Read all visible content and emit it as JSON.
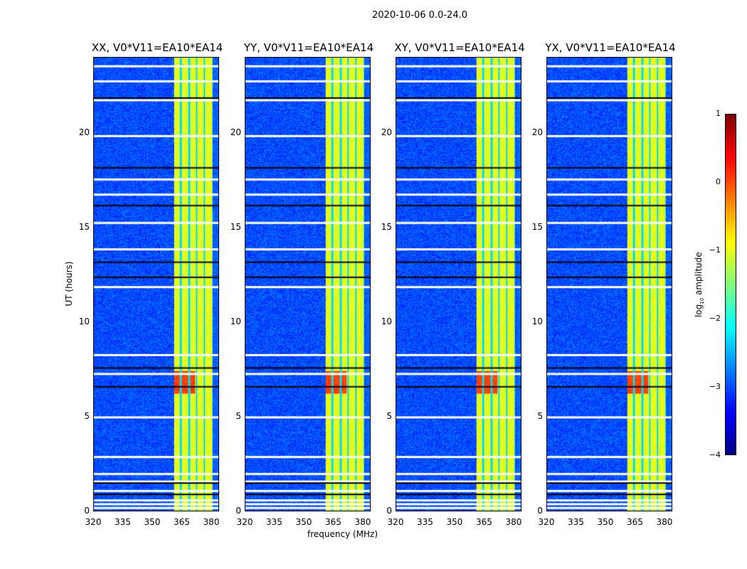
{
  "chart_data": {
    "type": "heatmap",
    "title": "2020-10-06 0.0-24.0",
    "xlabel": "frequency (MHz)",
    "ylabel": "UT (hours)",
    "xlim": [
      320,
      384
    ],
    "ylim": [
      0,
      24
    ],
    "xticks": [
      "320",
      "335",
      "350",
      "365",
      "380"
    ],
    "yticks": [
      "0",
      "5",
      "10",
      "15",
      "20"
    ],
    "panels": [
      {
        "title": "XX, V0*V11=EA10*EA14"
      },
      {
        "title": "YY, V0*V11=EA10*EA14"
      },
      {
        "title": "XY, V0*V11=EA10*EA14"
      },
      {
        "title": "YX, V0*V11=EA10*EA14"
      }
    ],
    "colorbar": {
      "label": "log10 amplitude",
      "label_main": "log",
      "label_sub": "10",
      "label_rest": " amplitude",
      "range": [
        -4,
        1
      ],
      "ticks": [
        "1",
        "0",
        "−1",
        "−2",
        "−3",
        "−4"
      ],
      "colormap": "jet"
    },
    "bright_band_mhz": [
      361,
      381
    ],
    "background_level": -3,
    "band_level": -1,
    "flagged_white_hours": [
      0.2,
      0.4,
      0.6,
      1.1,
      1.6,
      2.0,
      2.9,
      5.0,
      7.3,
      8.3,
      11.9,
      13.9,
      15.3,
      16.8,
      17.6,
      19.9,
      21.8,
      22.8,
      23.6
    ],
    "flagged_black_hours": [
      0.9,
      1.5,
      6.6,
      7.6,
      12.4,
      13.2,
      16.2,
      18.2,
      21.9
    ]
  }
}
